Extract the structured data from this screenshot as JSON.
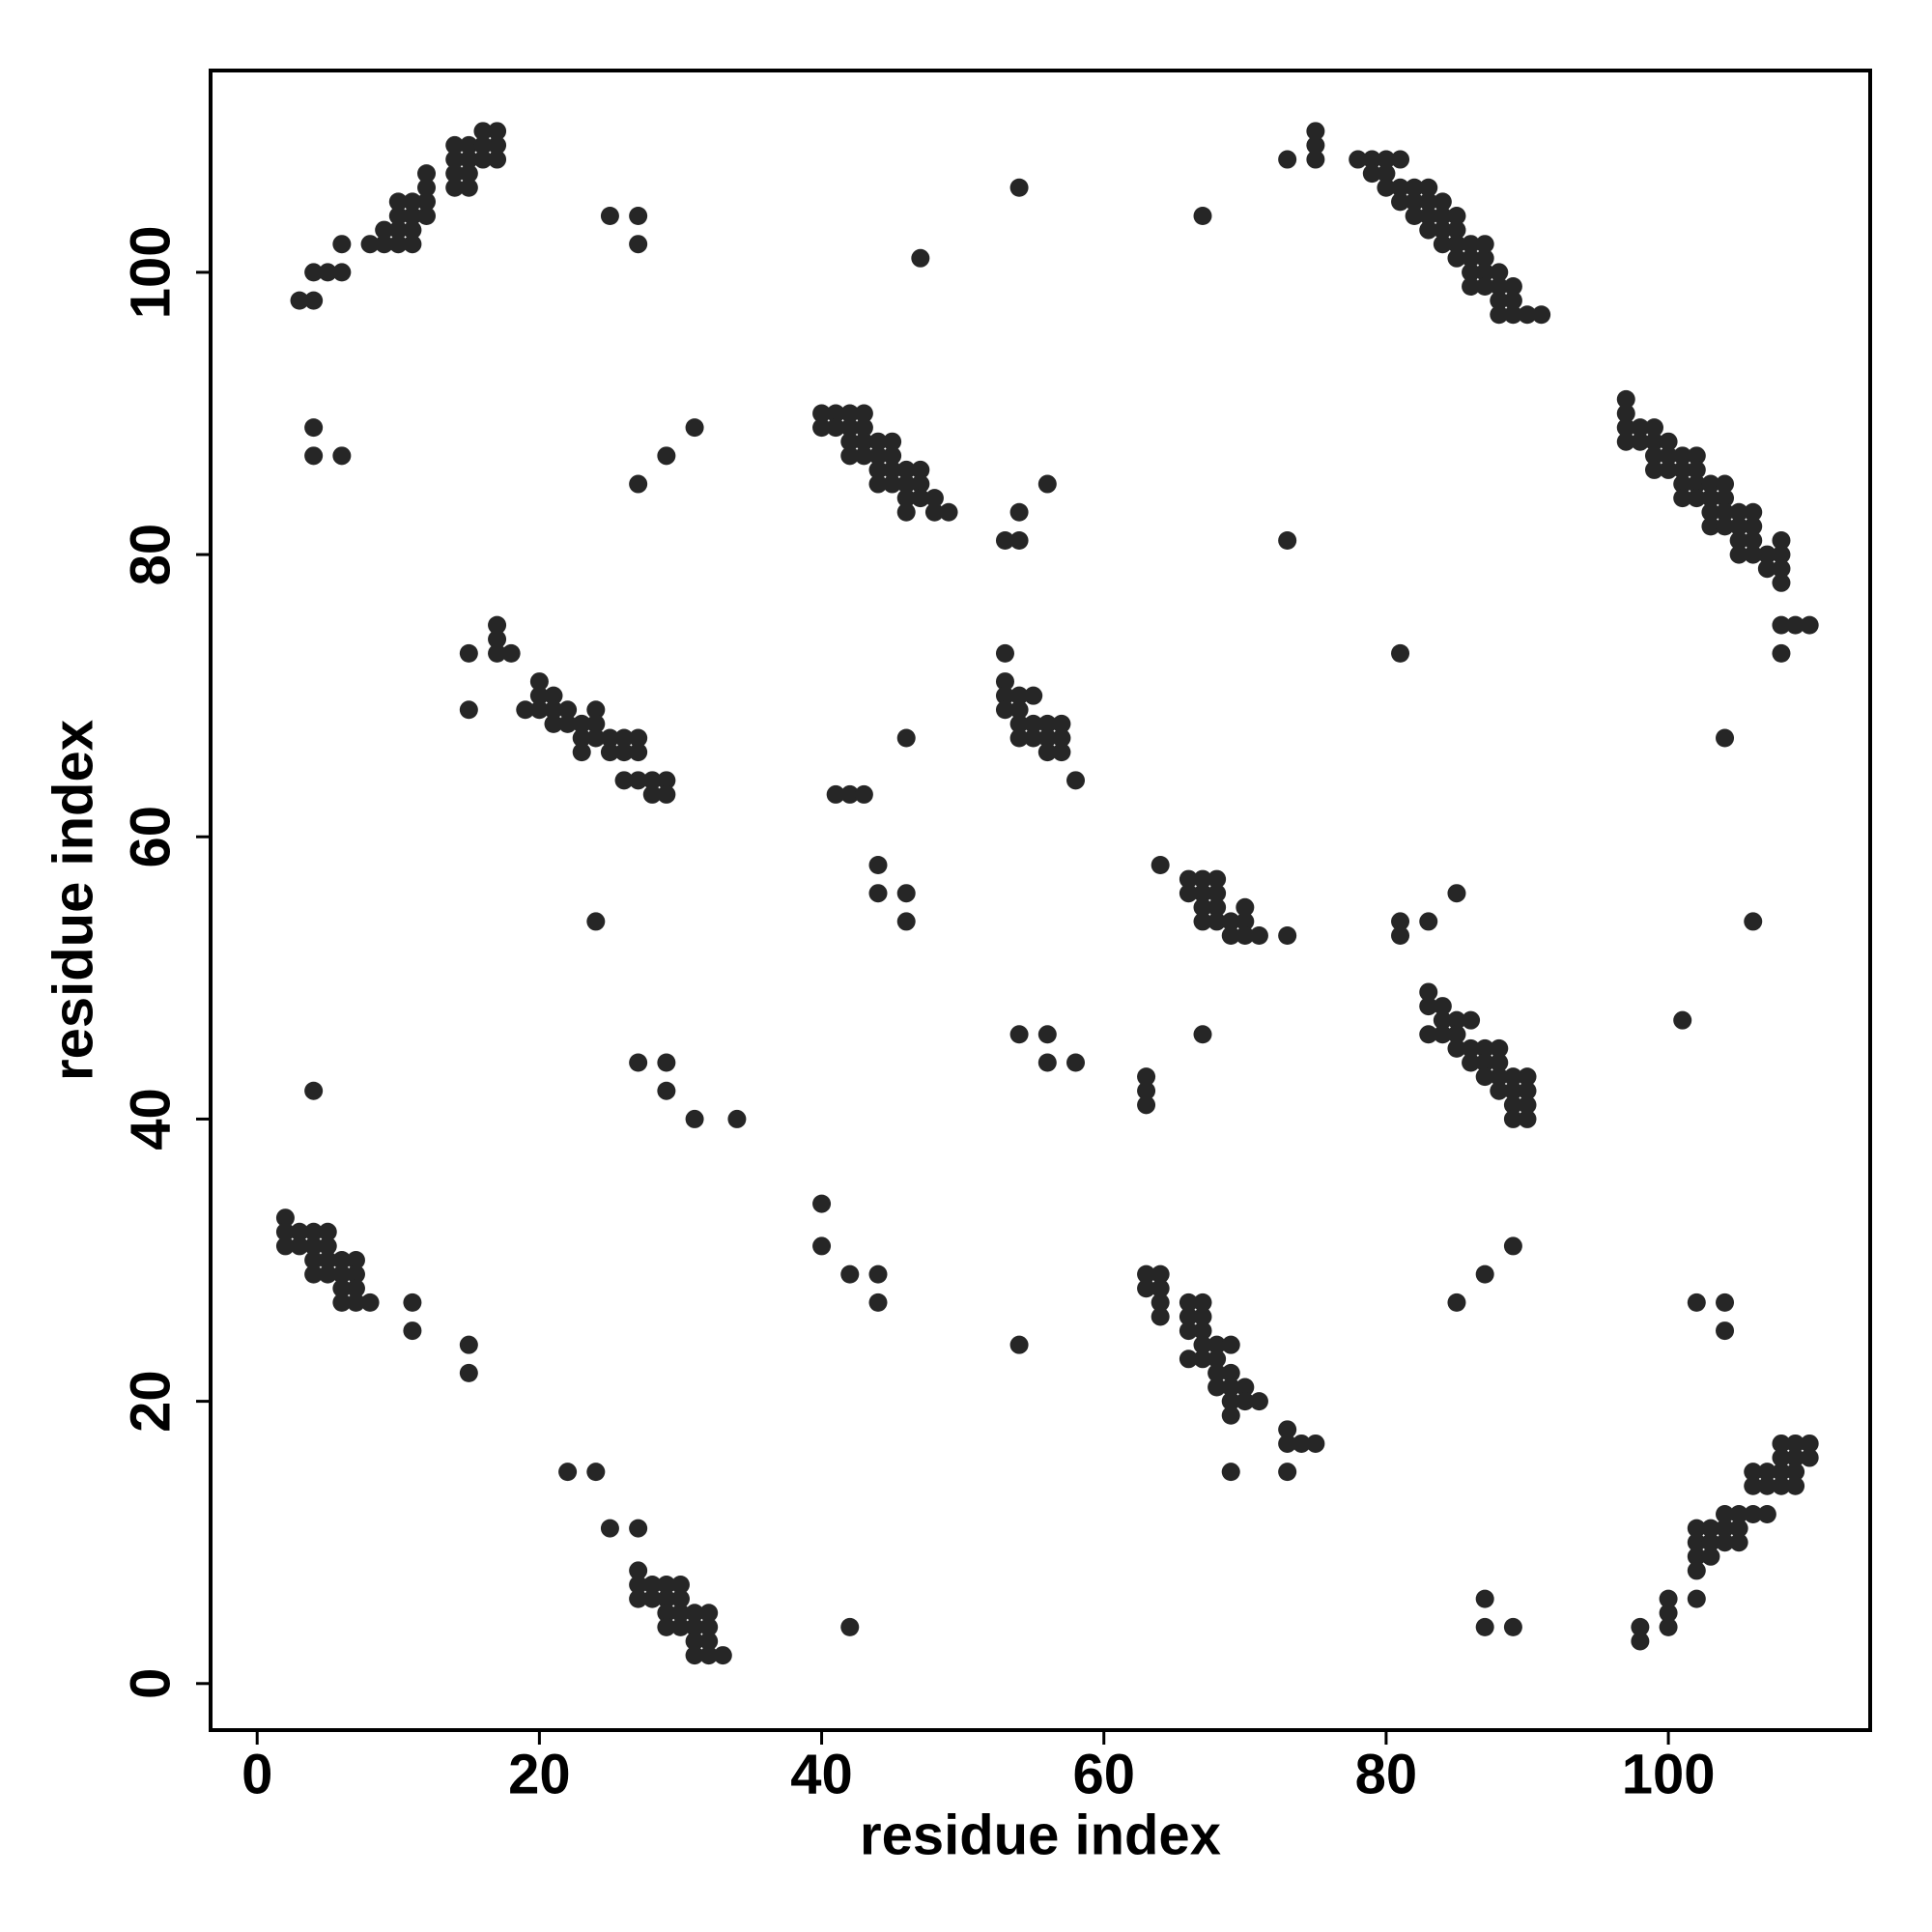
{
  "chart_data": {
    "type": "scatter",
    "xlabel": "residue index",
    "ylabel": "residue index",
    "color": "#262626",
    "xlim": [
      -3.3,
      114.3
    ],
    "ylim": [
      -3.3,
      114.3
    ],
    "xticks": [
      0,
      20,
      40,
      60,
      80,
      100
    ],
    "yticks": [
      0,
      20,
      40,
      60,
      80,
      100
    ],
    "x": [
      3,
      4,
      4,
      5,
      6,
      6,
      8,
      9,
      9,
      10,
      10,
      10,
      10,
      11,
      11,
      11,
      11,
      12,
      12,
      12,
      12,
      14,
      14,
      14,
      14,
      15,
      15,
      15,
      15,
      16,
      16,
      16,
      17,
      17,
      17,
      25,
      27,
      27,
      4,
      4,
      6,
      27,
      29,
      31,
      54,
      47,
      67,
      73,
      75,
      75,
      75,
      78,
      79,
      80,
      81,
      80,
      79,
      80,
      81,
      81,
      82,
      82,
      83,
      82,
      83,
      83,
      84,
      84,
      83,
      84,
      85,
      85,
      84,
      85,
      86,
      85,
      86,
      87,
      87,
      86,
      87,
      88,
      86,
      87,
      88,
      89,
      88,
      89,
      88,
      89,
      90,
      91,
      40,
      40,
      41,
      41,
      42,
      42,
      43,
      43,
      42,
      43,
      44,
      45,
      42,
      43,
      44,
      45,
      44,
      45,
      46,
      47,
      44,
      45,
      46,
      47,
      46,
      47,
      48,
      46,
      48,
      49,
      53,
      54,
      54,
      56,
      73,
      81,
      104,
      108,
      97,
      97,
      97,
      97,
      98,
      98,
      99,
      99,
      99,
      100,
      100,
      99,
      100,
      101,
      101,
      101,
      102,
      102,
      102,
      101,
      102,
      103,
      103,
      103,
      104,
      104,
      104,
      103,
      104,
      105,
      105,
      105,
      106,
      106,
      106,
      105,
      106,
      107,
      108,
      108,
      107,
      108,
      108,
      108,
      109,
      110,
      15,
      15,
      17,
      17,
      17,
      18,
      19,
      20,
      20,
      20,
      21,
      21,
      21,
      22,
      22,
      23,
      23,
      23,
      24,
      24,
      24,
      25,
      25,
      26,
      26,
      27,
      27,
      26,
      27,
      28,
      28,
      29,
      29,
      53,
      53,
      53,
      53,
      54,
      54,
      54,
      54,
      55,
      55,
      55,
      56,
      56,
      56,
      57,
      57,
      57,
      58,
      41,
      42,
      43,
      46,
      44,
      44,
      46,
      46,
      24,
      64,
      66,
      66,
      67,
      67,
      67,
      67,
      68,
      68,
      68,
      68,
      69,
      69,
      70,
      70,
      70,
      71,
      73,
      81,
      81,
      83,
      85,
      106,
      101,
      67,
      83,
      83,
      83,
      84,
      84,
      84,
      85,
      85,
      85,
      86,
      86,
      86,
      87,
      87,
      87,
      88,
      88,
      88,
      88,
      89,
      89,
      89,
      89,
      90,
      90,
      90,
      90,
      54,
      56,
      56,
      58,
      63,
      63,
      63,
      4,
      27,
      29,
      29,
      31,
      34,
      2,
      2,
      2,
      3,
      3,
      4,
      4,
      4,
      5,
      5,
      5,
      5,
      4,
      6,
      6,
      6,
      6,
      7,
      7,
      7,
      7,
      8,
      11,
      11,
      15,
      15,
      40,
      40,
      42,
      44,
      44,
      54,
      63,
      63,
      64,
      64,
      64,
      64,
      66,
      66,
      66,
      66,
      67,
      67,
      67,
      67,
      67,
      68,
      68,
      68,
      68,
      69,
      69,
      69,
      69,
      69,
      70,
      70,
      71,
      73,
      73,
      74,
      75,
      69,
      73,
      85,
      87,
      89,
      102,
      104,
      104,
      22,
      24,
      25,
      27,
      27,
      27,
      27,
      28,
      28,
      29,
      29,
      29,
      29,
      30,
      30,
      30,
      30,
      31,
      31,
      31,
      31,
      32,
      32,
      32,
      32,
      33,
      42,
      87,
      87,
      89,
      98,
      98,
      100,
      100,
      100,
      102,
      102,
      102,
      102,
      102,
      103,
      103,
      103,
      104,
      104,
      104,
      105,
      105,
      105,
      106,
      106,
      106,
      107,
      107,
      107,
      108,
      108,
      108,
      108,
      109,
      109,
      109,
      109,
      110,
      110
    ],
    "y": [
      98,
      98,
      100,
      100,
      100,
      102,
      102,
      102,
      103,
      102,
      103,
      104,
      105,
      102,
      103,
      104,
      105,
      104,
      105,
      106,
      107,
      106,
      107,
      108,
      109,
      106,
      107,
      108,
      109,
      108,
      109,
      110,
      108,
      109,
      110,
      104,
      104,
      102,
      89,
      87,
      87,
      85,
      87,
      89,
      106,
      101,
      104,
      108,
      108,
      109,
      110,
      108,
      108,
      108,
      108,
      107,
      107,
      106,
      106,
      105,
      105,
      106,
      106,
      104,
      104,
      105,
      105,
      104,
      103,
      103,
      103,
      104,
      102,
      102,
      102,
      101,
      101,
      101,
      102,
      100,
      100,
      100,
      99,
      99,
      99,
      99,
      98,
      98,
      97,
      97,
      97,
      97,
      90,
      89,
      90,
      89,
      90,
      89,
      90,
      89,
      88,
      88,
      88,
      88,
      87,
      87,
      87,
      87,
      86,
      86,
      86,
      86,
      85,
      85,
      85,
      85,
      84,
      84,
      84,
      83,
      83,
      83,
      81,
      81,
      83,
      85,
      81,
      73,
      67,
      73,
      91,
      90,
      89,
      88,
      89,
      88,
      89,
      88,
      87,
      88,
      87,
      86,
      86,
      87,
      86,
      85,
      87,
      86,
      85,
      84,
      84,
      84,
      85,
      83,
      85,
      84,
      83,
      82,
      82,
      83,
      82,
      81,
      83,
      82,
      81,
      80,
      80,
      80,
      81,
      80,
      79,
      79,
      78,
      75,
      75,
      75,
      73,
      69,
      75,
      74,
      73,
      73,
      69,
      71,
      70,
      69,
      70,
      69,
      68,
      69,
      68,
      68,
      67,
      66,
      69,
      68,
      67,
      67,
      66,
      67,
      66,
      67,
      66,
      64,
      64,
      64,
      63,
      64,
      63,
      73,
      71,
      70,
      69,
      70,
      69,
      68,
      67,
      70,
      68,
      67,
      68,
      67,
      66,
      68,
      67,
      66,
      64,
      63,
      63,
      63,
      67,
      58,
      56,
      56,
      54,
      54,
      58,
      57,
      56,
      57,
      56,
      55,
      54,
      57,
      56,
      55,
      54,
      54,
      53,
      55,
      54,
      53,
      53,
      53,
      54,
      53,
      54,
      56,
      54,
      47,
      46,
      49,
      48,
      46,
      48,
      47,
      46,
      47,
      46,
      45,
      47,
      45,
      44,
      45,
      44,
      43,
      45,
      44,
      43,
      42,
      43,
      42,
      41,
      40,
      43,
      42,
      41,
      40,
      46,
      46,
      44,
      44,
      43,
      42,
      41,
      42,
      44,
      44,
      42,
      40,
      40,
      33,
      32,
      31,
      32,
      31,
      32,
      31,
      30,
      32,
      31,
      30,
      29,
      29,
      30,
      29,
      28,
      27,
      30,
      29,
      28,
      27,
      27,
      27,
      25,
      24,
      22,
      34,
      31,
      29,
      29,
      27,
      24,
      29,
      28,
      29,
      28,
      27,
      26,
      27,
      26,
      25,
      23,
      27,
      26,
      25,
      24,
      23,
      24,
      23,
      22,
      21,
      24,
      22,
      21,
      20,
      19,
      21,
      20,
      20,
      18,
      17,
      17,
      17,
      15,
      15,
      27,
      29,
      31,
      27,
      27,
      25,
      15,
      15,
      11,
      11,
      8,
      7,
      6,
      7,
      6,
      7,
      6,
      5,
      4,
      7,
      6,
      5,
      4,
      5,
      4,
      3,
      2,
      5,
      4,
      3,
      2,
      2,
      4,
      6,
      4,
      4,
      4,
      3,
      6,
      5,
      4,
      11,
      10,
      9,
      8,
      6,
      11,
      10,
      9,
      12,
      11,
      10,
      12,
      11,
      10,
      15,
      14,
      12,
      15,
      14,
      12,
      17,
      16,
      15,
      14,
      17,
      16,
      15,
      14,
      17,
      16
    ]
  }
}
